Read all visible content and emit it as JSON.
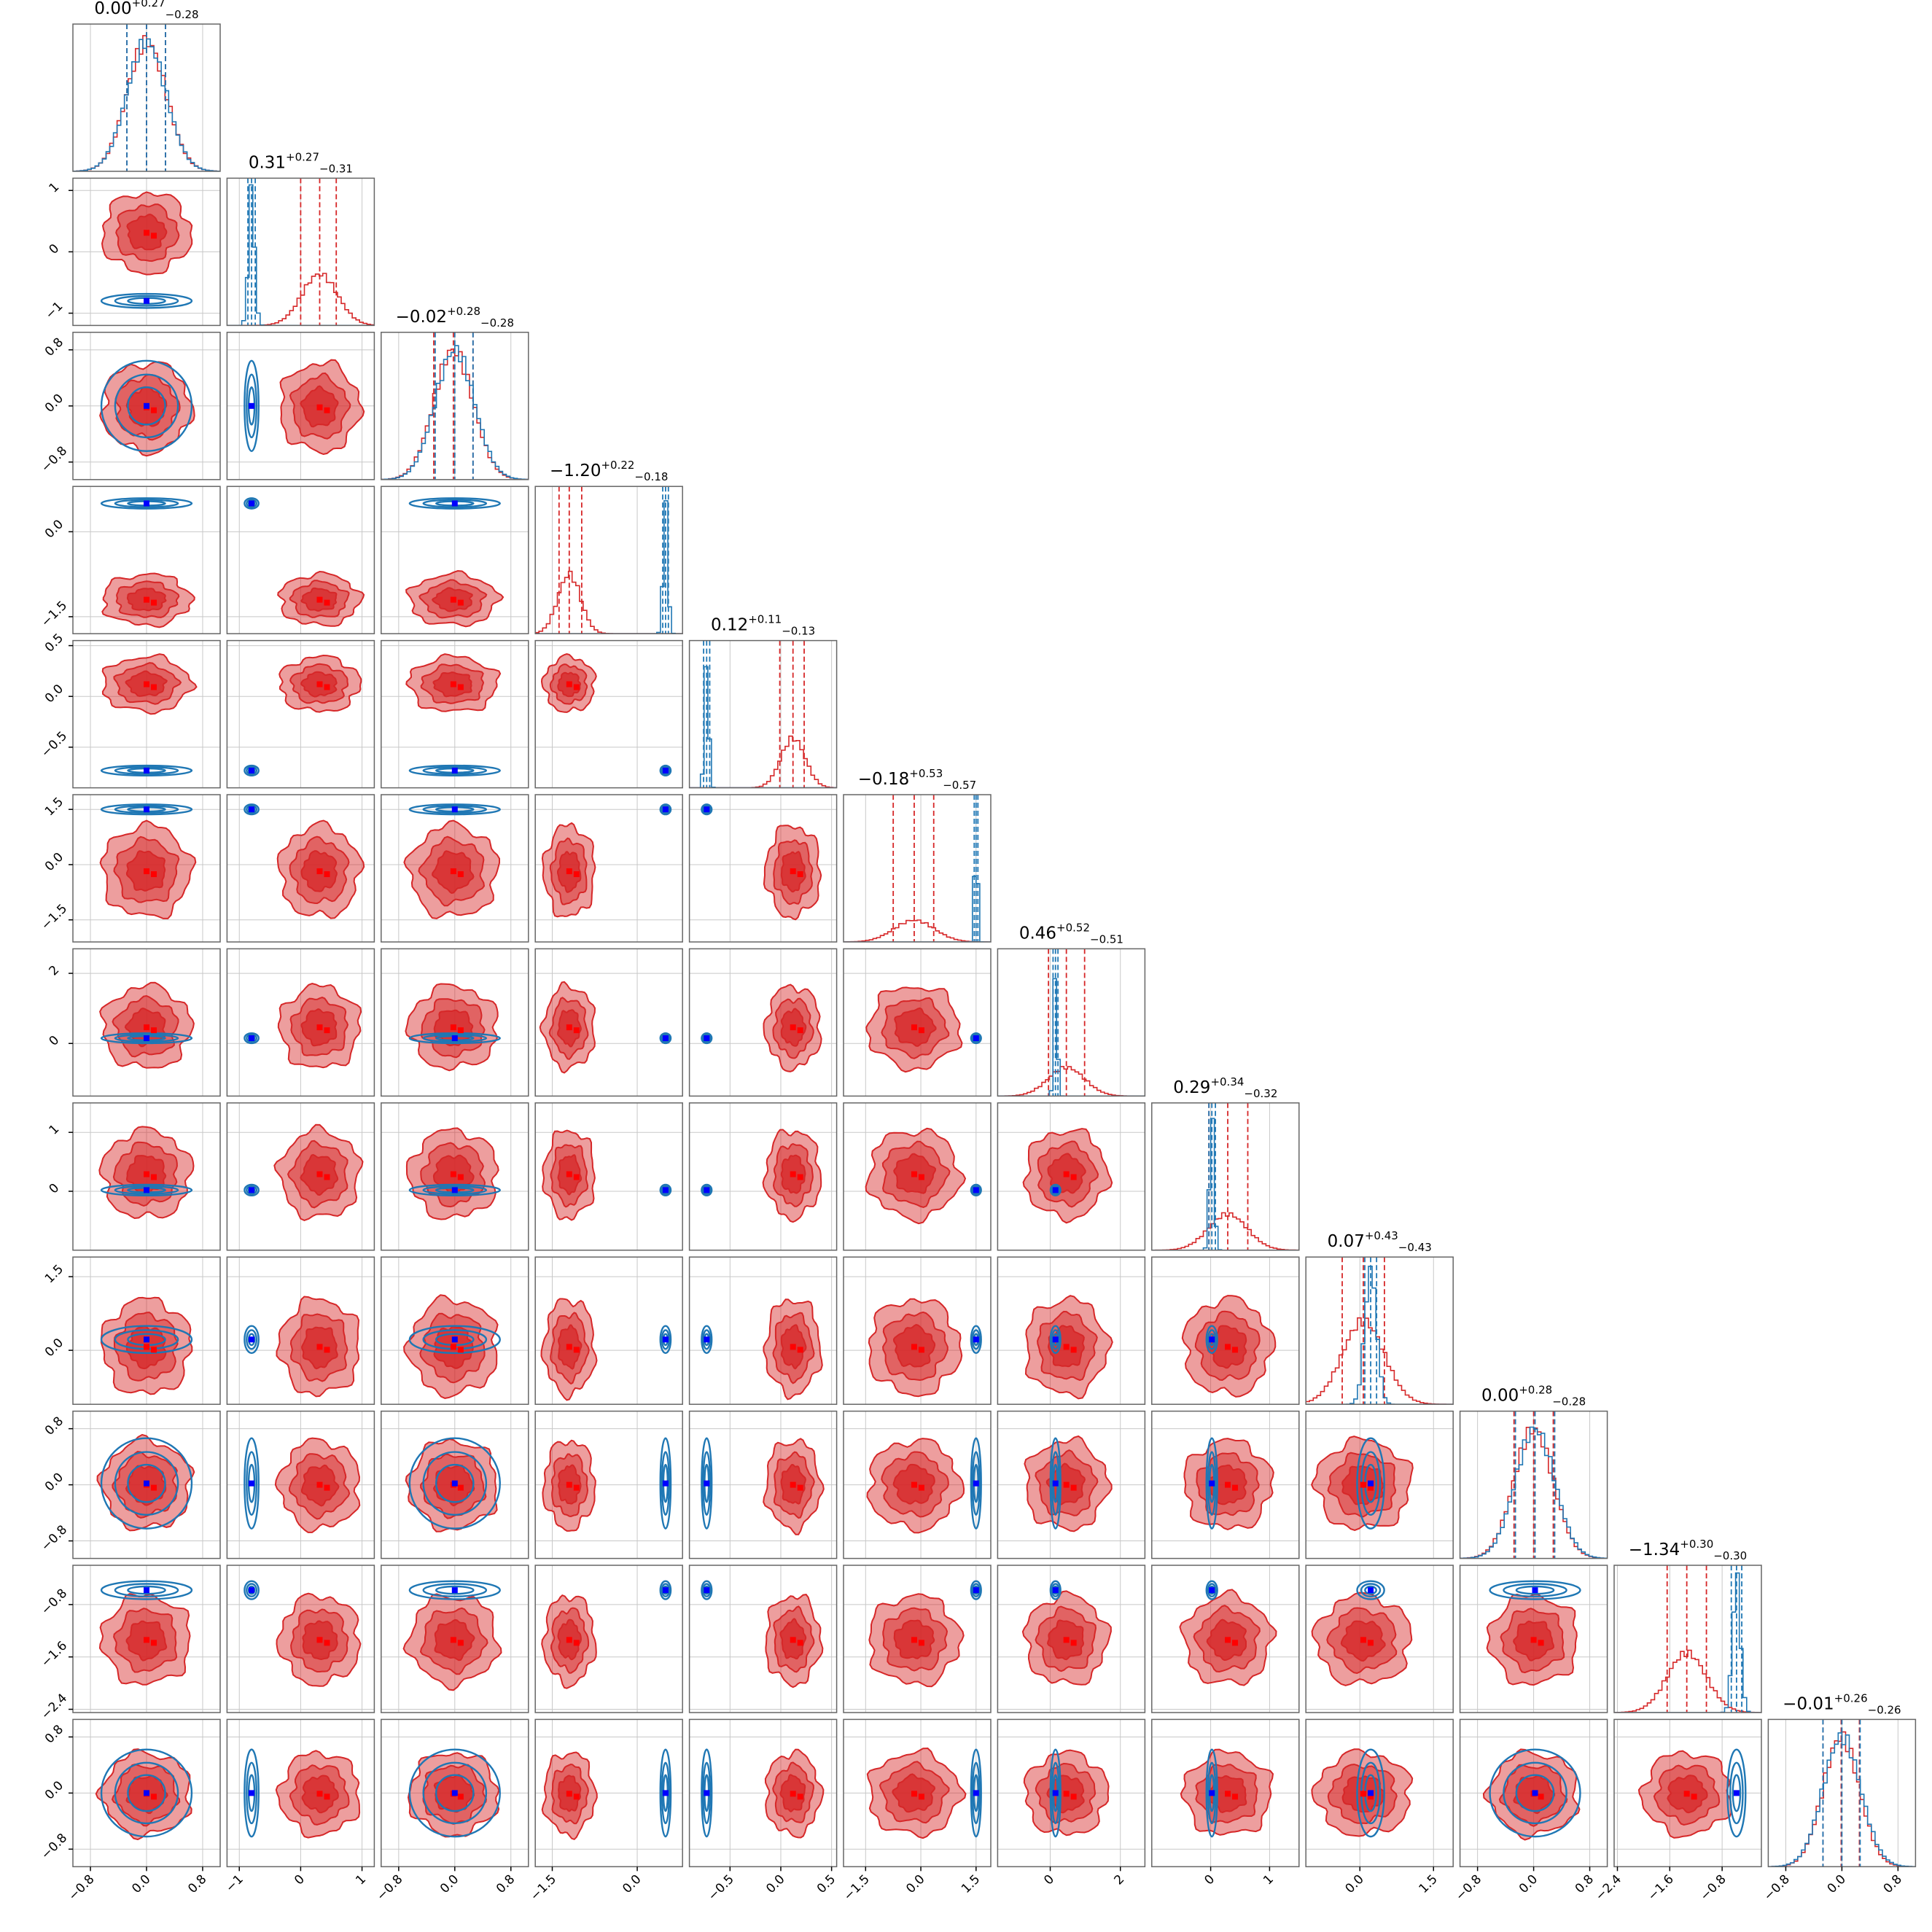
{
  "chart_data": {
    "type": "corner",
    "n_params": 12,
    "grid": true,
    "series": [
      {
        "name": "",
        "color": "#d62728",
        "role": "posterior-red"
      },
      {
        "name": "",
        "color": "#1f77b4",
        "role": "posterior-blue"
      }
    ],
    "marker_colors": {
      "red": "#ff0000",
      "blue": "#0000ff"
    },
    "params": [
      {
        "range": [
          -1.05,
          1.05
        ],
        "ticks": [
          -0.8,
          0.0,
          0.8
        ],
        "tick_labels": [
          "−0.8",
          "0.0",
          "0.8"
        ],
        "title": {
          "median": "0.00",
          "plus": "+0.27",
          "minus": "−0.28"
        },
        "red": {
          "mean": 0.0,
          "sd": 0.28,
          "q": [
            -0.28,
            0.27
          ]
        },
        "blue": {
          "mean": 0.0,
          "sd": 0.28,
          "q": [
            -0.28,
            0.27
          ]
        },
        "truth": 0.0
      },
      {
        "range": [
          -1.2,
          1.2
        ],
        "ticks": [
          -1,
          0,
          1
        ],
        "tick_labels": [
          "−1",
          "0",
          "1"
        ],
        "title": {
          "median": "0.31",
          "plus": "+0.27",
          "minus": "−0.31"
        },
        "red": {
          "mean": 0.31,
          "sd": 0.29,
          "q": [
            0.0,
            0.58
          ]
        },
        "blue": {
          "mean": -0.8,
          "sd": 0.05,
          "q": [
            -0.86,
            -0.74
          ]
        },
        "truth": -0.8
      },
      {
        "range": [
          -1.05,
          1.05
        ],
        "ticks": [
          -0.8,
          0.0,
          0.8
        ],
        "tick_labels": [
          "−0.8",
          "0.0",
          "0.8"
        ],
        "title": {
          "median": "−0.02",
          "plus": "+0.28",
          "minus": "−0.28"
        },
        "red": {
          "mean": -0.02,
          "sd": 0.28,
          "q": [
            -0.3,
            0.26
          ]
        },
        "blue": {
          "mean": 0.0,
          "sd": 0.28,
          "q": [
            -0.28,
            0.26
          ]
        },
        "truth": 0.0
      },
      {
        "range": [
          -1.8,
          0.8
        ],
        "ticks": [
          -1.5,
          0.0
        ],
        "tick_labels": [
          "−1.5",
          "0.0"
        ],
        "title": {
          "median": "−1.20",
          "plus": "+0.22",
          "minus": "−0.18"
        },
        "red": {
          "mean": -1.2,
          "sd": 0.2,
          "q": [
            -1.38,
            -0.98
          ]
        },
        "blue": {
          "mean": 0.5,
          "sd": 0.04,
          "q": [
            0.45,
            0.55
          ]
        },
        "truth": 0.5
      },
      {
        "range": [
          -0.9,
          0.55
        ],
        "ticks": [
          -0.5,
          0.0,
          0.5
        ],
        "tick_labels": [
          "−0.5",
          "0.0",
          "0.5"
        ],
        "title": {
          "median": "0.12",
          "plus": "+0.11",
          "minus": "−0.13"
        },
        "red": {
          "mean": 0.12,
          "sd": 0.12,
          "q": [
            -0.01,
            0.23
          ]
        },
        "blue": {
          "mean": -0.73,
          "sd": 0.02,
          "q": [
            -0.76,
            -0.7
          ]
        },
        "truth": -0.73
      },
      {
        "range": [
          -2.1,
          1.9
        ],
        "ticks": [
          -1.5,
          0.0,
          1.5
        ],
        "tick_labels": [
          "−1.5",
          "0.0",
          "1.5"
        ],
        "title": {
          "median": "−0.18",
          "plus": "+0.53",
          "minus": "−0.57"
        },
        "red": {
          "mean": -0.18,
          "sd": 0.55,
          "q": [
            -0.75,
            0.35
          ]
        },
        "blue": {
          "mean": 1.5,
          "sd": 0.04,
          "q": [
            1.45,
            1.55
          ]
        },
        "truth": 1.5
      },
      {
        "range": [
          -1.5,
          2.7
        ],
        "ticks": [
          0,
          2
        ],
        "tick_labels": [
          "0",
          "2"
        ],
        "title": {
          "median": "0.46",
          "plus": "+0.52",
          "minus": "−0.51"
        },
        "red": {
          "mean": 0.46,
          "sd": 0.52,
          "q": [
            -0.05,
            0.98
          ]
        },
        "blue": {
          "mean": 0.15,
          "sd": 0.05,
          "q": [
            0.08,
            0.22
          ]
        },
        "truth": 0.15
      },
      {
        "range": [
          -1.0,
          1.5
        ],
        "ticks": [
          0,
          1
        ],
        "tick_labels": [
          "0",
          "1"
        ],
        "title": {
          "median": "0.29",
          "plus": "+0.34",
          "minus": "−0.32"
        },
        "red": {
          "mean": 0.29,
          "sd": 0.33,
          "q": [
            -0.03,
            0.63
          ]
        },
        "blue": {
          "mean": 0.02,
          "sd": 0.04,
          "q": [
            -0.03,
            0.08
          ]
        },
        "truth": 0.02
      },
      {
        "range": [
          -1.1,
          1.9
        ],
        "ticks": [
          0.0,
          1.5
        ],
        "tick_labels": [
          "0.0",
          "1.5"
        ],
        "title": {
          "median": "0.07",
          "plus": "+0.43",
          "minus": "−0.43"
        },
        "red": {
          "mean": 0.07,
          "sd": 0.43,
          "q": [
            -0.36,
            0.5
          ]
        },
        "blue": {
          "mean": 0.22,
          "sd": 0.12,
          "q": [
            0.1,
            0.34
          ]
        },
        "truth": 0.22
      },
      {
        "range": [
          -1.05,
          1.05
        ],
        "ticks": [
          -0.8,
          0.0,
          0.8
        ],
        "tick_labels": [
          "−0.8",
          "0.0",
          "0.8"
        ],
        "title": {
          "median": "0.00",
          "plus": "+0.28",
          "minus": "−0.28"
        },
        "red": {
          "mean": 0.0,
          "sd": 0.28,
          "q": [
            -0.28,
            0.28
          ]
        },
        "blue": {
          "mean": 0.02,
          "sd": 0.28,
          "q": [
            -0.26,
            0.3
          ]
        },
        "truth": 0.02
      },
      {
        "range": [
          -2.45,
          -0.2
        ],
        "ticks": [
          -2.4,
          -1.6,
          -0.8
        ],
        "tick_labels": [
          "−2.4",
          "−1.6",
          "−0.8"
        ],
        "title": {
          "median": "−1.34",
          "plus": "+0.30",
          "minus": "−0.30"
        },
        "red": {
          "mean": -1.34,
          "sd": 0.3,
          "q": [
            -1.64,
            -1.04
          ]
        },
        "blue": {
          "mean": -0.58,
          "sd": 0.06,
          "q": [
            -0.66,
            -0.5
          ]
        },
        "truth": -0.58
      },
      {
        "range": [
          -1.05,
          1.05
        ],
        "ticks": [
          -0.8,
          0.0,
          0.8
        ],
        "tick_labels": [
          "−0.8",
          "0.0",
          "0.8"
        ],
        "title": {
          "median": "−0.01",
          "plus": "+0.26",
          "minus": "−0.26"
        },
        "red": {
          "mean": -0.01,
          "sd": 0.26,
          "q": [
            -0.27,
            0.25
          ]
        },
        "blue": {
          "mean": 0.0,
          "sd": 0.27,
          "q": [
            -0.27,
            0.26
          ]
        },
        "truth": 0.0
      }
    ]
  }
}
